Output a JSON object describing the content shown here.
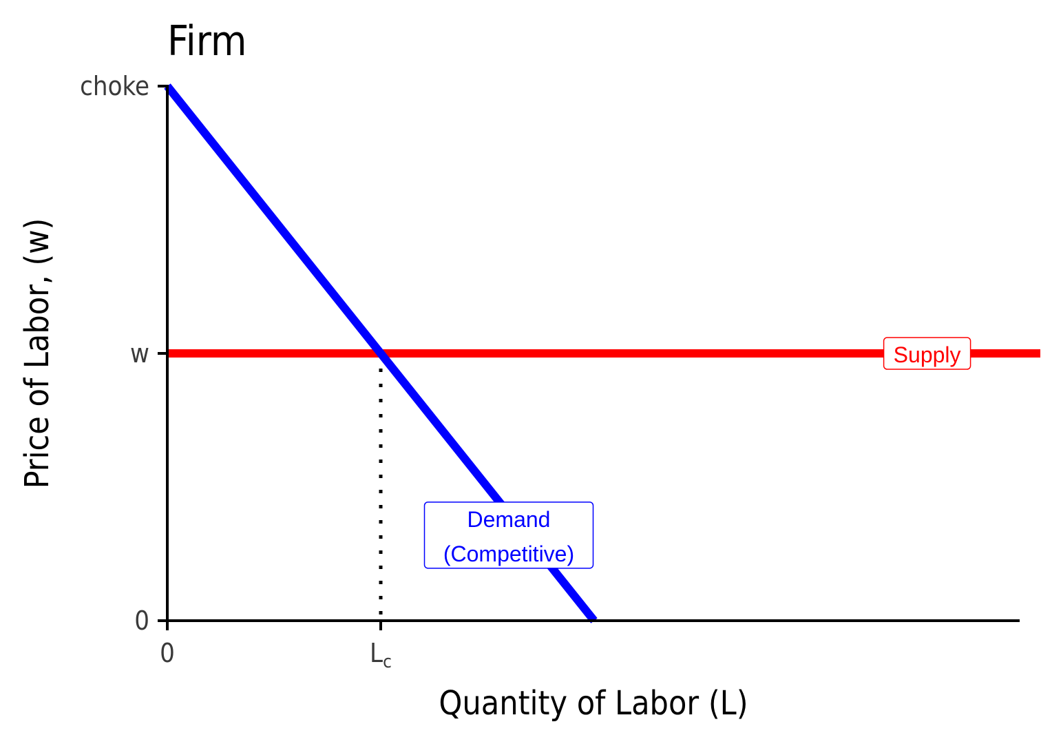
{
  "chart_data": {
    "type": "line",
    "title": "Firm",
    "xlabel": "Quantity of Labor (L)",
    "ylabel": "Price of Labor, (w)",
    "xlim": [
      0,
      10
    ],
    "ylim": [
      0,
      10
    ],
    "x_ticks": [
      {
        "value": 0,
        "label": "0",
        "sub": ""
      },
      {
        "value": 2.5,
        "label": "L",
        "sub": "c"
      }
    ],
    "y_ticks": [
      {
        "value": 0,
        "label": "0"
      },
      {
        "value": 5,
        "label": "w"
      },
      {
        "value": 10,
        "label": "choke"
      }
    ],
    "series": [
      {
        "name": "Supply",
        "color": "#ff0000",
        "points": [
          [
            0,
            5
          ],
          [
            10,
            5
          ]
        ]
      },
      {
        "name": "Demand (Competitive)",
        "color": "#0000ff",
        "points": [
          [
            0,
            10
          ],
          [
            5,
            0
          ]
        ]
      }
    ],
    "annotations": [
      {
        "id": "supply",
        "lines": [
          "Supply"
        ],
        "color": "#ff0000",
        "x": 8.9,
        "y": 5
      },
      {
        "id": "demand",
        "lines": [
          "Demand",
          "(Competitive)"
        ],
        "color": "#0000ff",
        "x": 4.0,
        "y": 1.6
      }
    ],
    "guide_lines": [
      {
        "type": "vertical-dotted",
        "x": 2.5,
        "from_y": 0,
        "to_y": 5
      }
    ],
    "grid": false,
    "legend": "none"
  }
}
